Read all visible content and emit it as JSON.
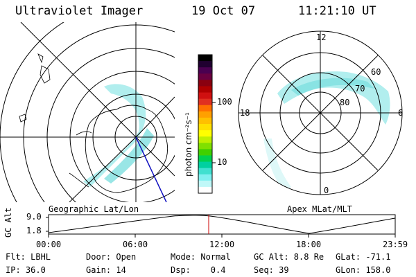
{
  "header": {
    "instrument": "Ultraviolet Imager",
    "date": "19 Oct 07",
    "time": "11:21:10 UT"
  },
  "left_panel": {
    "caption": "Geographic Lat/Lon"
  },
  "right_panel": {
    "caption": "Apex MLat/MLT",
    "mlt_labels": [
      "12",
      "18",
      "6",
      "0"
    ],
    "mlat_labels": [
      "60",
      "70",
      "80"
    ]
  },
  "colorbar": {
    "unit_label": "photon cm⁻²s⁻¹",
    "tick_labels": [
      "100",
      "10"
    ],
    "colors": [
      "#000000",
      "#200030",
      "#4a0050",
      "#6a0040",
      "#8a0010",
      "#b00000",
      "#d01010",
      "#e03020",
      "#ff7000",
      "#ffa000",
      "#ffc000",
      "#ffe000",
      "#ffff00",
      "#c0f000",
      "#80e000",
      "#40d000",
      "#00d050",
      "#00d0a0",
      "#40e0d0",
      "#80f0f0",
      "#c0f8f8",
      "#ffffff"
    ]
  },
  "altitude_plot": {
    "ylabel": "GC Alt",
    "y_ticks": [
      "9.0",
      "1.8"
    ],
    "x_ticks": [
      "00:00",
      "06:00",
      "12:00",
      "18:00",
      "23:59"
    ],
    "current_marker_color": "#cc0000"
  },
  "footer": {
    "row1": [
      "Flt: LBHL",
      "Door: Open",
      "Mode: Normal",
      "GC Alt: 8.8 Re",
      "GLat: -71.1"
    ],
    "row2": [
      "IP: 36.0",
      "Gain: 14",
      "Dsp:    0.4",
      "Seq: 39",
      "GLon: 158.0"
    ]
  }
}
